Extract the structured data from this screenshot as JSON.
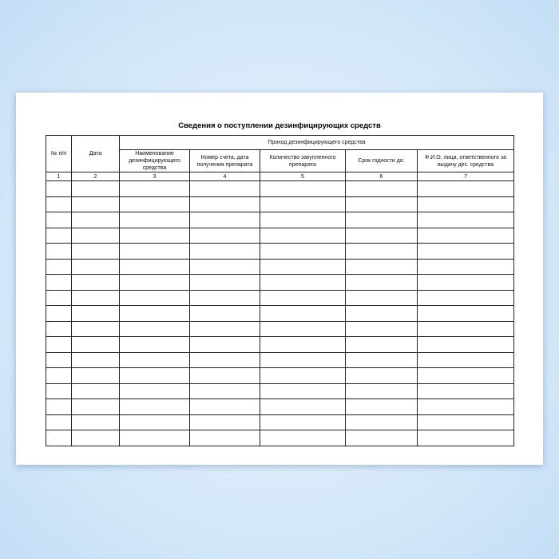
{
  "title": "Сведения о поступлении дезинфицирующих средств",
  "headers": {
    "col1": "№ п/п",
    "col2": "Дата",
    "group": "Приход дезинфицирующего средства",
    "col3": "Наименование дезинфицирующего средства",
    "col4": "Номер счета, дата получения препарата",
    "col5": "Количество закупленного препарата",
    "col6": "Срок годности до:",
    "col7": "Ф.И.О. лица, ответственного за выдачу дез. средства"
  },
  "column_numbers": [
    "1",
    "2",
    "3",
    "4",
    "5",
    "6",
    "7"
  ],
  "empty_rows": 17
}
